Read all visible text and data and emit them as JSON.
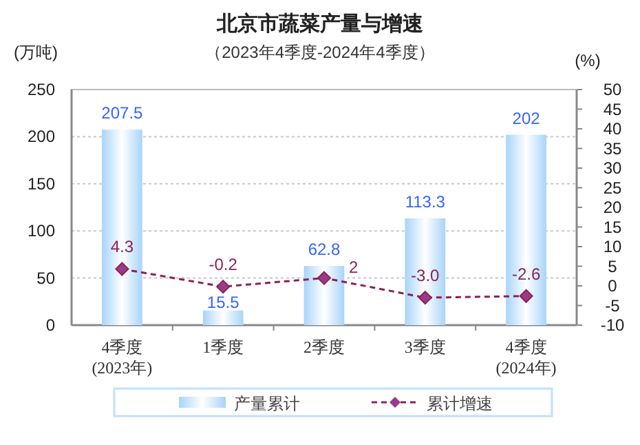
{
  "chart_data": {
    "type": "bar",
    "title": "北京市蔬菜产量与增速",
    "subtitle": "（2023年4季度-2024年4季度）",
    "ylabel": "(万吨)",
    "y2label": "(%)",
    "categories": [
      "4季度\n(2023年)",
      "1季度",
      "2季度",
      "3季度",
      "4季度\n(2024年)"
    ],
    "series": [
      {
        "name": "产量累计",
        "color": "#a8d4fa",
        "values": [
          207.5,
          15.5,
          62.8,
          113.3,
          202
        ],
        "value_labels": [
          "207.5",
          "15.5",
          "62.8",
          "113.3",
          "202"
        ]
      },
      {
        "name": "累计增速",
        "type": "line",
        "axis": "y2",
        "color": "#8b2252",
        "marker": "diamond",
        "line_style": "dashed",
        "values": [
          4.3,
          -0.2,
          2,
          -3.0,
          -2.6
        ],
        "value_labels": [
          "4.3",
          "-0.2",
          "2",
          "-3.0",
          "-2.6"
        ]
      }
    ],
    "ylim": [
      0,
      250
    ],
    "yticks": [
      0,
      50,
      100,
      150,
      200,
      250
    ],
    "y2lim": [
      -10,
      50
    ],
    "y2ticks": [
      -10,
      -5,
      0,
      5,
      10,
      15,
      20,
      25,
      30,
      35,
      40,
      45,
      50
    ],
    "grid": "y",
    "legend": "bottom"
  }
}
